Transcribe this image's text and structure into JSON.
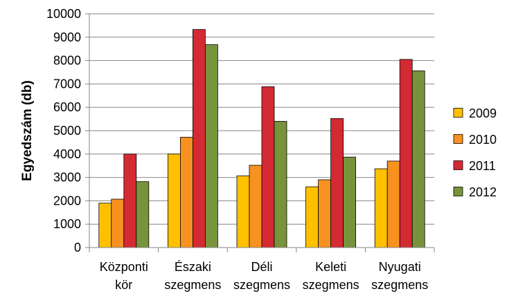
{
  "chart_data": {
    "type": "bar",
    "title": "",
    "xlabel": "",
    "ylabel": "Egyedszám (db)",
    "ylim": [
      0,
      10000
    ],
    "yticks": [
      0,
      1000,
      2000,
      3000,
      4000,
      5000,
      6000,
      7000,
      8000,
      9000,
      10000
    ],
    "categories": [
      [
        "Központi",
        "kör"
      ],
      [
        "Északi",
        "szegmens"
      ],
      [
        "Déli",
        "szegmens"
      ],
      [
        "Keleti",
        "szegmens"
      ],
      [
        "Nyugati",
        "szegmens"
      ]
    ],
    "series": [
      {
        "name": "2009",
        "color": "#FFC000",
        "values": [
          1900,
          4000,
          3070,
          2600,
          3370
        ]
      },
      {
        "name": "2010",
        "color": "#F79120",
        "values": [
          2070,
          4720,
          3520,
          2900,
          3700
        ]
      },
      {
        "name": "2011",
        "color": "#D42A33",
        "values": [
          4000,
          9330,
          6880,
          5520,
          8050
        ]
      },
      {
        "name": "2012",
        "color": "#77933C",
        "values": [
          2820,
          8680,
          5400,
          3870,
          7560
        ]
      }
    ],
    "grid": true,
    "legend": "right"
  }
}
